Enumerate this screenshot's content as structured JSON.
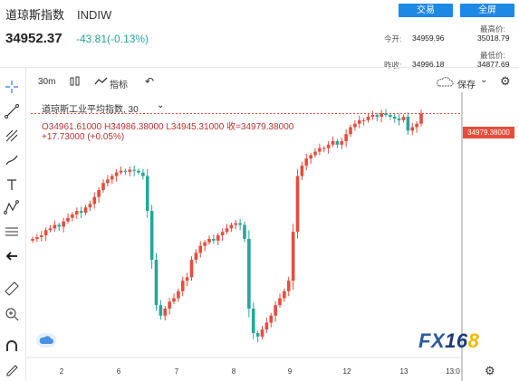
{
  "header": {
    "name": "道琼斯指数",
    "code": "INDIW",
    "btn_trade": "交易",
    "btn_full": "全屏",
    "price": "34952.37",
    "change": "-43.81(-0.13%)",
    "stats": {
      "open_label": "今开:",
      "open": "34959.96",
      "prev_label": "昨收:",
      "prev": "34996.18",
      "high_label": "最高价:",
      "high": "35018.79",
      "low_label": "最低价:",
      "low": "34877.69"
    }
  },
  "toolbar": {
    "interval": "30m",
    "indicators": "指标",
    "save": "保存"
  },
  "legend": {
    "name": "道琼斯工业平均指数, 30",
    "ohlc": "O34961.61000  H34986.38000  L34945.31000  收=34979.38000",
    "delta": "+17.73000 (+0.05%)"
  },
  "price_label": "34979.38000",
  "logo": {
    "a": "FX",
    "b": "16",
    "c": "8"
  },
  "colors": {
    "up": "#e74c3c",
    "down": "#26a69a",
    "accent": "#1e88e5"
  },
  "chart_data": {
    "type": "candlestick",
    "x_ticks": [
      "2",
      "6",
      "7",
      "8",
      "9",
      "12",
      "13",
      "13:0"
    ],
    "y_range": [
      34280,
      35040
    ],
    "candles_close": [
      34620,
      34625,
      34630,
      34645,
      34650,
      34660,
      34655,
      34670,
      34680,
      34690,
      34700,
      34695,
      34710,
      34720,
      34740,
      34760,
      34780,
      34790,
      34800,
      34810,
      34815,
      34812,
      34818,
      34815,
      34810,
      34800,
      34700,
      34560,
      34430,
      34400,
      34420,
      34440,
      34450,
      34470,
      34500,
      34510,
      34560,
      34580,
      34600,
      34610,
      34620,
      34615,
      34630,
      34640,
      34650,
      34660,
      34665,
      34660,
      34620,
      34420,
      34350,
      34340,
      34360,
      34380,
      34400,
      34430,
      34450,
      34470,
      34500,
      34640,
      34800,
      34830,
      34850,
      34860,
      34870,
      34880,
      34880,
      34890,
      34900,
      34890,
      34900,
      34920,
      34940,
      34950,
      34960,
      34960,
      34970,
      34975,
      34970,
      34980,
      34975,
      34970,
      34965,
      34960,
      34970,
      34930,
      34940,
      34950,
      34979
    ]
  }
}
